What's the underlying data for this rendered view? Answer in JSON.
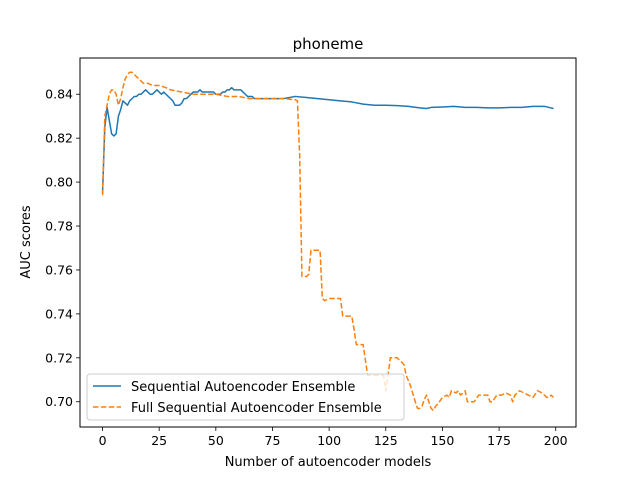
{
  "chart_data": {
    "type": "line",
    "title": "phoneme",
    "xlabel": "Number of autoencoder models",
    "ylabel": "AUC scores",
    "xlim": [
      -9.95,
      208.95
    ],
    "ylim": [
      0.6885,
      0.8565
    ],
    "xticks": [
      0,
      25,
      50,
      75,
      100,
      125,
      150,
      175,
      200
    ],
    "xtick_labels": [
      "0",
      "25",
      "50",
      "75",
      "100",
      "125",
      "150",
      "175",
      "200"
    ],
    "yticks": [
      0.7,
      0.72,
      0.74,
      0.76,
      0.78,
      0.8,
      0.82,
      0.84
    ],
    "ytick_labels": [
      "0.70",
      "0.72",
      "0.74",
      "0.76",
      "0.78",
      "0.80",
      "0.82",
      "0.84"
    ],
    "grid": false,
    "legend_position": "lower-left",
    "series": [
      {
        "name": "Sequential Autoencoder Ensemble",
        "color": "#1f77b4",
        "style": "solid",
        "points": [
          [
            0,
            0.795
          ],
          [
            1,
            0.825
          ],
          [
            2,
            0.834
          ],
          [
            3,
            0.828
          ],
          [
            4,
            0.822
          ],
          [
            5,
            0.821
          ],
          [
            6,
            0.822
          ],
          [
            7,
            0.83
          ],
          [
            8,
            0.833
          ],
          [
            9,
            0.837
          ],
          [
            10,
            0.836
          ],
          [
            11,
            0.835
          ],
          [
            12,
            0.837
          ],
          [
            13,
            0.838
          ],
          [
            14,
            0.839
          ],
          [
            15,
            0.839
          ],
          [
            16,
            0.84
          ],
          [
            17,
            0.84
          ],
          [
            18,
            0.841
          ],
          [
            19,
            0.842
          ],
          [
            20,
            0.841
          ],
          [
            21,
            0.84
          ],
          [
            22,
            0.84
          ],
          [
            23,
            0.841
          ],
          [
            24,
            0.842
          ],
          [
            25,
            0.841
          ],
          [
            26,
            0.84
          ],
          [
            27,
            0.841
          ],
          [
            28,
            0.84
          ],
          [
            29,
            0.839
          ],
          [
            30,
            0.838
          ],
          [
            31,
            0.837
          ],
          [
            32,
            0.835
          ],
          [
            33,
            0.835
          ],
          [
            34,
            0.835
          ],
          [
            35,
            0.836
          ],
          [
            36,
            0.838
          ],
          [
            37,
            0.838
          ],
          [
            38,
            0.839
          ],
          [
            39,
            0.84
          ],
          [
            40,
            0.841
          ],
          [
            41,
            0.841
          ],
          [
            42,
            0.841
          ],
          [
            43,
            0.842
          ],
          [
            44,
            0.841
          ],
          [
            45,
            0.841
          ],
          [
            46,
            0.841
          ],
          [
            47,
            0.841
          ],
          [
            48,
            0.841
          ],
          [
            49,
            0.841
          ],
          [
            50,
            0.84
          ],
          [
            51,
            0.84
          ],
          [
            52,
            0.84
          ],
          [
            53,
            0.841
          ],
          [
            54,
            0.841
          ],
          [
            55,
            0.842
          ],
          [
            56,
            0.842
          ],
          [
            57,
            0.843
          ],
          [
            58,
            0.842
          ],
          [
            59,
            0.842
          ],
          [
            60,
            0.842
          ],
          [
            61,
            0.842
          ],
          [
            62,
            0.841
          ],
          [
            63,
            0.84
          ],
          [
            64,
            0.839
          ],
          [
            65,
            0.839
          ],
          [
            66,
            0.839
          ],
          [
            67,
            0.838
          ],
          [
            68,
            0.838
          ],
          [
            69,
            0.838
          ],
          [
            70,
            0.838
          ],
          [
            75,
            0.838
          ],
          [
            80,
            0.838
          ],
          [
            85,
            0.839
          ],
          [
            90,
            0.8385
          ],
          [
            95,
            0.838
          ],
          [
            100,
            0.8375
          ],
          [
            105,
            0.837
          ],
          [
            110,
            0.8365
          ],
          [
            115,
            0.8355
          ],
          [
            120,
            0.835
          ],
          [
            125,
            0.835
          ],
          [
            130,
            0.8348
          ],
          [
            135,
            0.8345
          ],
          [
            140,
            0.8338
          ],
          [
            143,
            0.8335
          ],
          [
            145,
            0.834
          ],
          [
            150,
            0.8342
          ],
          [
            155,
            0.8345
          ],
          [
            160,
            0.834
          ],
          [
            165,
            0.834
          ],
          [
            170,
            0.8338
          ],
          [
            175,
            0.8338
          ],
          [
            180,
            0.834
          ],
          [
            185,
            0.834
          ],
          [
            190,
            0.8345
          ],
          [
            195,
            0.8345
          ],
          [
            197,
            0.834
          ],
          [
            199,
            0.8335
          ]
        ]
      },
      {
        "name": "Full Sequential Autoencoder Ensemble",
        "color": "#ff7f0e",
        "style": "dashed",
        "points": [
          [
            0,
            0.794
          ],
          [
            1,
            0.83
          ],
          [
            2,
            0.835
          ],
          [
            3,
            0.84
          ],
          [
            4,
            0.842
          ],
          [
            5,
            0.842
          ],
          [
            6,
            0.84
          ],
          [
            7,
            0.835
          ],
          [
            8,
            0.838
          ],
          [
            9,
            0.843
          ],
          [
            10,
            0.847
          ],
          [
            11,
            0.849
          ],
          [
            12,
            0.85
          ],
          [
            13,
            0.85
          ],
          [
            14,
            0.849
          ],
          [
            15,
            0.848
          ],
          [
            16,
            0.847
          ],
          [
            17,
            0.846
          ],
          [
            18,
            0.845
          ],
          [
            20,
            0.845
          ],
          [
            22,
            0.844
          ],
          [
            25,
            0.844
          ],
          [
            28,
            0.843
          ],
          [
            30,
            0.842
          ],
          [
            35,
            0.841
          ],
          [
            40,
            0.84
          ],
          [
            45,
            0.84
          ],
          [
            50,
            0.84
          ],
          [
            55,
            0.839
          ],
          [
            60,
            0.839
          ],
          [
            65,
            0.838
          ],
          [
            70,
            0.838
          ],
          [
            75,
            0.838
          ],
          [
            80,
            0.838
          ],
          [
            85,
            0.8375
          ],
          [
            86,
            0.837
          ],
          [
            87,
            0.812
          ],
          [
            88,
            0.757
          ],
          [
            90,
            0.757
          ],
          [
            91,
            0.758
          ],
          [
            92,
            0.769
          ],
          [
            95,
            0.769
          ],
          [
            96,
            0.769
          ],
          [
            97,
            0.747
          ],
          [
            98,
            0.746
          ],
          [
            100,
            0.747
          ],
          [
            101,
            0.747
          ],
          [
            103,
            0.747
          ],
          [
            104,
            0.747
          ],
          [
            105,
            0.747
          ],
          [
            106,
            0.739
          ],
          [
            110,
            0.739
          ],
          [
            111,
            0.733
          ],
          [
            112,
            0.726
          ],
          [
            115,
            0.726
          ],
          [
            116,
            0.719
          ],
          [
            117,
            0.712
          ],
          [
            120,
            0.712
          ],
          [
            122,
            0.712
          ],
          [
            123,
            0.712
          ],
          [
            124,
            0.712
          ],
          [
            125,
            0.705
          ],
          [
            126,
            0.712
          ],
          [
            127,
            0.72
          ],
          [
            128,
            0.72
          ],
          [
            130,
            0.72
          ],
          [
            131,
            0.719
          ],
          [
            132,
            0.718
          ],
          [
            133,
            0.717
          ],
          [
            134,
            0.712
          ],
          [
            136,
            0.707
          ],
          [
            138,
            0.7
          ],
          [
            139,
            0.697
          ],
          [
            140,
            0.697
          ],
          [
            141,
            0.698
          ],
          [
            142,
            0.701
          ],
          [
            143,
            0.703
          ],
          [
            144,
            0.7
          ],
          [
            145,
            0.697
          ],
          [
            146,
            0.696
          ],
          [
            147,
            0.698
          ],
          [
            148,
            0.699
          ],
          [
            150,
            0.702
          ],
          [
            152,
            0.703
          ],
          [
            153,
            0.702
          ],
          [
            154,
            0.705
          ],
          [
            156,
            0.704
          ],
          [
            157,
            0.705
          ],
          [
            158,
            0.703
          ],
          [
            160,
            0.705
          ],
          [
            161,
            0.7
          ],
          [
            162,
            0.7
          ],
          [
            164,
            0.7
          ],
          [
            166,
            0.703
          ],
          [
            168,
            0.703
          ],
          [
            170,
            0.703
          ],
          [
            171,
            0.7
          ],
          [
            172,
            0.7
          ],
          [
            174,
            0.703
          ],
          [
            176,
            0.703
          ],
          [
            178,
            0.704
          ],
          [
            180,
            0.703
          ],
          [
            181,
            0.7
          ],
          [
            182,
            0.703
          ],
          [
            184,
            0.705
          ],
          [
            186,
            0.704
          ],
          [
            188,
            0.703
          ],
          [
            190,
            0.702
          ],
          [
            192,
            0.705
          ],
          [
            194,
            0.704
          ],
          [
            196,
            0.702
          ],
          [
            197,
            0.702
          ],
          [
            198,
            0.703
          ],
          [
            199,
            0.702
          ]
        ]
      }
    ]
  }
}
